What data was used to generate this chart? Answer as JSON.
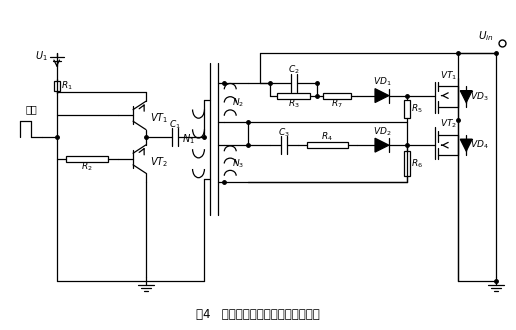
{
  "title": "图4   新型的不对称半桥隔离驱动电路",
  "bg_color": "#ffffff",
  "line_color": "#000000",
  "fig_width": 5.16,
  "fig_height": 3.3,
  "dpi": 100
}
